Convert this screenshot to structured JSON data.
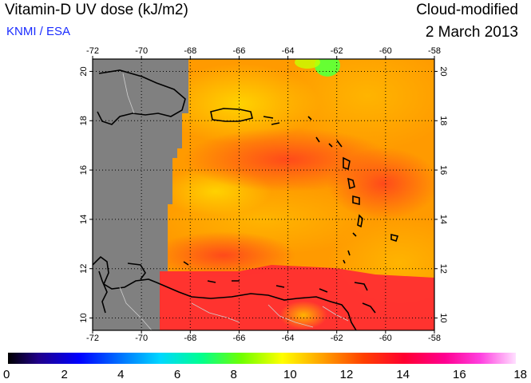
{
  "header": {
    "title": "Vitamin-D UV dose (kJ/m2)",
    "credit": "KNMI / ESA",
    "mode": "Cloud-modified",
    "date": "2 March 2013"
  },
  "map": {
    "lon_range": [
      -72,
      -58
    ],
    "lat_range": [
      9.5,
      20.5
    ],
    "lon_ticks": [
      "-72",
      "-70",
      "-68",
      "-66",
      "-64",
      "-62",
      "-60",
      "-58"
    ],
    "lat_ticks": [
      "20",
      "18",
      "16",
      "14",
      "12",
      "10"
    ],
    "colors": {
      "no_data": "#808080",
      "orange": "#ff9a00",
      "red": "#ff2a33",
      "yellow": "#ffcc00",
      "green": "#66ff33"
    }
  },
  "colorbar": {
    "labels": [
      "0",
      "2",
      "4",
      "6",
      "8",
      "10",
      "12",
      "14",
      "16",
      "18"
    ],
    "min": 0,
    "max": 18
  }
}
